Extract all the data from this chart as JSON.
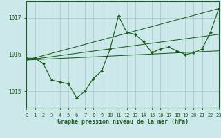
{
  "title": "Graphe pression niveau de la mer (hPa)",
  "background_color": "#cce8ea",
  "grid_color": "#aacccc",
  "line_color": "#1a5e1a",
  "xlim": [
    0,
    23
  ],
  "ylim": [
    1014.55,
    1017.45
  ],
  "yticks": [
    1015,
    1016,
    1017
  ],
  "xticks": [
    0,
    1,
    2,
    3,
    4,
    5,
    6,
    7,
    8,
    9,
    10,
    11,
    12,
    13,
    14,
    15,
    16,
    17,
    18,
    19,
    20,
    21,
    22,
    23
  ],
  "series1": {
    "x": [
      0,
      1,
      2,
      3,
      4,
      5,
      6,
      7,
      8,
      9,
      10,
      11,
      12,
      13,
      14,
      15,
      16,
      17,
      18,
      19,
      20,
      21,
      22,
      23
    ],
    "y": [
      1015.9,
      1015.9,
      1015.75,
      1015.3,
      1015.25,
      1015.2,
      1014.82,
      1015.0,
      1015.35,
      1015.55,
      1016.15,
      1017.05,
      1016.6,
      1016.55,
      1016.35,
      1016.05,
      1016.15,
      1016.2,
      1016.1,
      1016.0,
      1016.05,
      1016.15,
      1016.6,
      1017.25
    ]
  },
  "series2": {
    "x": [
      0,
      23
    ],
    "y": [
      1015.85,
      1016.1
    ]
  },
  "series3": {
    "x": [
      0,
      23
    ],
    "y": [
      1015.85,
      1016.55
    ]
  },
  "series4": {
    "x": [
      0,
      23
    ],
    "y": [
      1015.85,
      1017.25
    ]
  }
}
